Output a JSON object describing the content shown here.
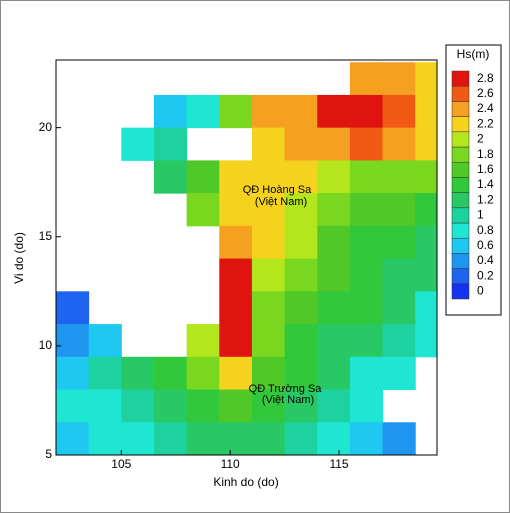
{
  "chart_data": {
    "type": "heatmap",
    "xlabel": "Kinh do (do)",
    "ylabel": "Vi do (do)",
    "xlim": [
      102,
      119.5
    ],
    "ylim": [
      5,
      23.1
    ],
    "xticks": [
      105,
      110,
      115
    ],
    "yticks": [
      5,
      10,
      15,
      20
    ],
    "x": [
      102.75,
      104.25,
      105.75,
      107.25,
      108.75,
      110.25,
      111.75,
      113.25,
      114.75,
      116.25,
      117.75,
      119.25
    ],
    "y": [
      22.25,
      20.75,
      19.25,
      17.75,
      16.25,
      14.75,
      13.25,
      11.75,
      10.25,
      8.75,
      7.25,
      5.75
    ],
    "values": [
      [
        null,
        null,
        null,
        null,
        null,
        null,
        null,
        null,
        null,
        2.4,
        2.4,
        2.2
      ],
      [
        null,
        null,
        null,
        0.6,
        0.8,
        1.8,
        2.4,
        2.5,
        2.7,
        2.7,
        2.6,
        2.3
      ],
      [
        null,
        null,
        0.9,
        1.0,
        null,
        null,
        2.3,
        2.4,
        2.5,
        2.6,
        2.5,
        2.2
      ],
      [
        null,
        null,
        null,
        1.2,
        1.6,
        2.2,
        2.3,
        2.2,
        2.0,
        1.9,
        1.9,
        1.8
      ],
      [
        null,
        null,
        null,
        null,
        1.9,
        2.2,
        2.2,
        2.1,
        1.9,
        1.7,
        1.6,
        1.5
      ],
      [
        null,
        null,
        null,
        null,
        null,
        2.4,
        2.2,
        2.0,
        1.7,
        1.4,
        1.3,
        1.2
      ],
      [
        null,
        null,
        null,
        null,
        null,
        2.7,
        2.0,
        1.9,
        1.6,
        1.4,
        1.2,
        1.1
      ],
      [
        0.3,
        null,
        null,
        null,
        null,
        2.8,
        1.9,
        1.7,
        1.5,
        1.3,
        1.1,
        0.9
      ],
      [
        0.4,
        0.6,
        null,
        null,
        2.0,
        2.8,
        1.8,
        1.4,
        1.2,
        1.1,
        1.0,
        0.8
      ],
      [
        0.6,
        1.0,
        1.2,
        1.4,
        1.9,
        2.3,
        1.6,
        1.3,
        1.1,
        0.9,
        0.8,
        null
      ],
      [
        0.8,
        0.9,
        1.0,
        1.2,
        1.4,
        1.6,
        1.4,
        1.2,
        1.0,
        0.8,
        null,
        null
      ],
      [
        0.7,
        0.8,
        0.9,
        1.0,
        1.1,
        1.2,
        1.1,
        1.0,
        0.9,
        0.7,
        0.5,
        null
      ]
    ],
    "colorbar": {
      "title": "Hs(m)",
      "levels": [
        0,
        0.2,
        0.4,
        0.6,
        0.8,
        1,
        1.2,
        1.4,
        1.6,
        1.8,
        2,
        2.2,
        2.4,
        2.6,
        2.8
      ],
      "colors": [
        "#1432f0",
        "#1e64f0",
        "#1e96f0",
        "#1ec8f0",
        "#1ee6d2",
        "#1ed2a0",
        "#28c864",
        "#32c83c",
        "#50c828",
        "#78d71e",
        "#b4e61e",
        "#f5d21e",
        "#f5a020",
        "#f05a14",
        "#e0140e"
      ]
    },
    "annotations": [
      "QĐ Hoàng Sa",
      "(Việt Nam)",
      "QĐ Trường Sa",
      "(Việt Nam)"
    ]
  }
}
